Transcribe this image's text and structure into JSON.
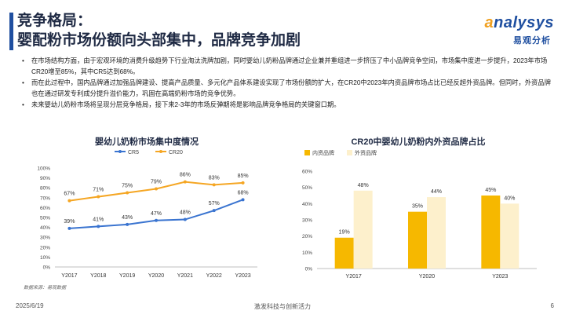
{
  "header": {
    "title_line1": "竞争格局：",
    "title_line2": "婴配粉市场份额向头部集中，品牌竞争加剧",
    "logo_main_prefix": "a",
    "logo_main_rest": "nalysys",
    "logo_sub": "易观分析"
  },
  "bullets": [
    "在市场结构方面，由于宏观环境的消费升级趋势下行业淘汰洗牌加剧，同时婴幼儿奶粉品牌通过企业兼并重组进一步挤压了中小品牌竞争空间，市场集中度进一步提升，2023年市场CR20增至85%，其中CR5达到68%。",
    "而在此过程中，国内品牌通过加强品牌建设、提高产品质量、多元化产品体系建设实现了市场份额的扩大，在CR20中2023年内资品牌市场占比已经反超外资品牌。但同时，外资品牌也在通过研发专利成分提升溢价能力，巩固在高端奶粉市场的竞争优势。",
    "未来婴幼儿奶粉市场将呈现分层竞争格局，接下来2-3年的市场反弹期将是影响品牌竞争格局的关键窗口期。"
  ],
  "source": "数据来源：易观数据",
  "footer": {
    "date": "2025/6/19",
    "center": "激发科技与创新活力",
    "page": "6"
  },
  "colors": {
    "title_blue": "#1f4fa0",
    "cr5": "#3a74d0",
    "cr20": "#f5a623",
    "domestic": "#f6b800",
    "foreign": "#fdf0cc"
  },
  "chart_data": [
    {
      "type": "line",
      "title": "婴幼儿奶粉市场集中度情况",
      "categories": [
        "Y2017",
        "Y2018",
        "Y2019",
        "Y2020",
        "Y2021",
        "Y2022",
        "Y2023"
      ],
      "series": [
        {
          "name": "CR5",
          "values": [
            39,
            41,
            43,
            47,
            48,
            57,
            68
          ],
          "labels": [
            "39%",
            "41%",
            "43%",
            "47%",
            "48%",
            "57%",
            "68%"
          ]
        },
        {
          "name": "CR20",
          "values": [
            67,
            71,
            75,
            79,
            86,
            83,
            85
          ],
          "labels": [
            "67%",
            "71%",
            "75%",
            "79%",
            "86%",
            "83%",
            "85%"
          ]
        }
      ],
      "yticks": [
        "0%",
        "10%",
        "20%",
        "30%",
        "40%",
        "50%",
        "60%",
        "70%",
        "80%",
        "90%",
        "100%"
      ],
      "ylim": [
        0,
        100
      ],
      "legend": "top",
      "grid": false
    },
    {
      "type": "bar",
      "title": "CR20中婴幼儿奶粉内外资品牌占比",
      "categories": [
        "Y2017",
        "Y2020",
        "Y2023"
      ],
      "series": [
        {
          "name": "内资品牌",
          "values": [
            19,
            35,
            45
          ],
          "labels": [
            "19%",
            "35%",
            "45%"
          ]
        },
        {
          "name": "外资品牌",
          "values": [
            48,
            44,
            40
          ],
          "labels": [
            "48%",
            "44%",
            "40%"
          ]
        }
      ],
      "yticks": [
        "0%",
        "10%",
        "20%",
        "30%",
        "40%",
        "50%",
        "60%"
      ],
      "ylim": [
        0,
        60
      ],
      "legend": "top-left",
      "grid": false
    }
  ]
}
